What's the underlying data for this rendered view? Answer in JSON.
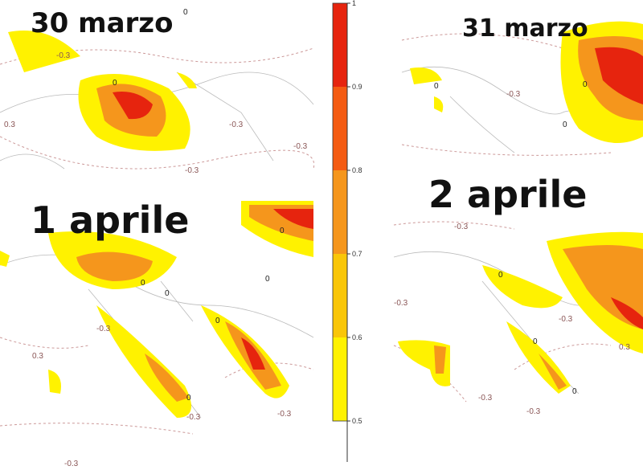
{
  "panels": [
    {
      "label": "30 marzo",
      "contours": [
        "0",
        "0",
        "-0.3",
        "-0.3",
        "-0.3",
        "0.3",
        "-0.3"
      ]
    },
    {
      "label": "31 marzo",
      "contours": [
        "0",
        "0",
        "-0.3",
        "0"
      ]
    },
    {
      "label": "1 aprile",
      "contours": [
        "0",
        "0",
        "0",
        "0",
        "0",
        "-0.3",
        "0.3",
        "-0.3",
        "-0.3",
        "0",
        "-0.3"
      ]
    },
    {
      "label": "2 aprile",
      "contours": [
        "-0.3",
        "0",
        "0",
        "-0.3",
        "-0.3",
        "0",
        "-0.3",
        "-0.3",
        "0.3"
      ]
    }
  ],
  "colorbar": {
    "range": [
      0.5,
      1
    ],
    "ticks": [
      1,
      0.9,
      0.8,
      0.7,
      0.6,
      0.5
    ],
    "colors": [
      "#e6240e",
      "#f45b12",
      "#f5961c",
      "#f9c608",
      "#fff200"
    ]
  }
}
